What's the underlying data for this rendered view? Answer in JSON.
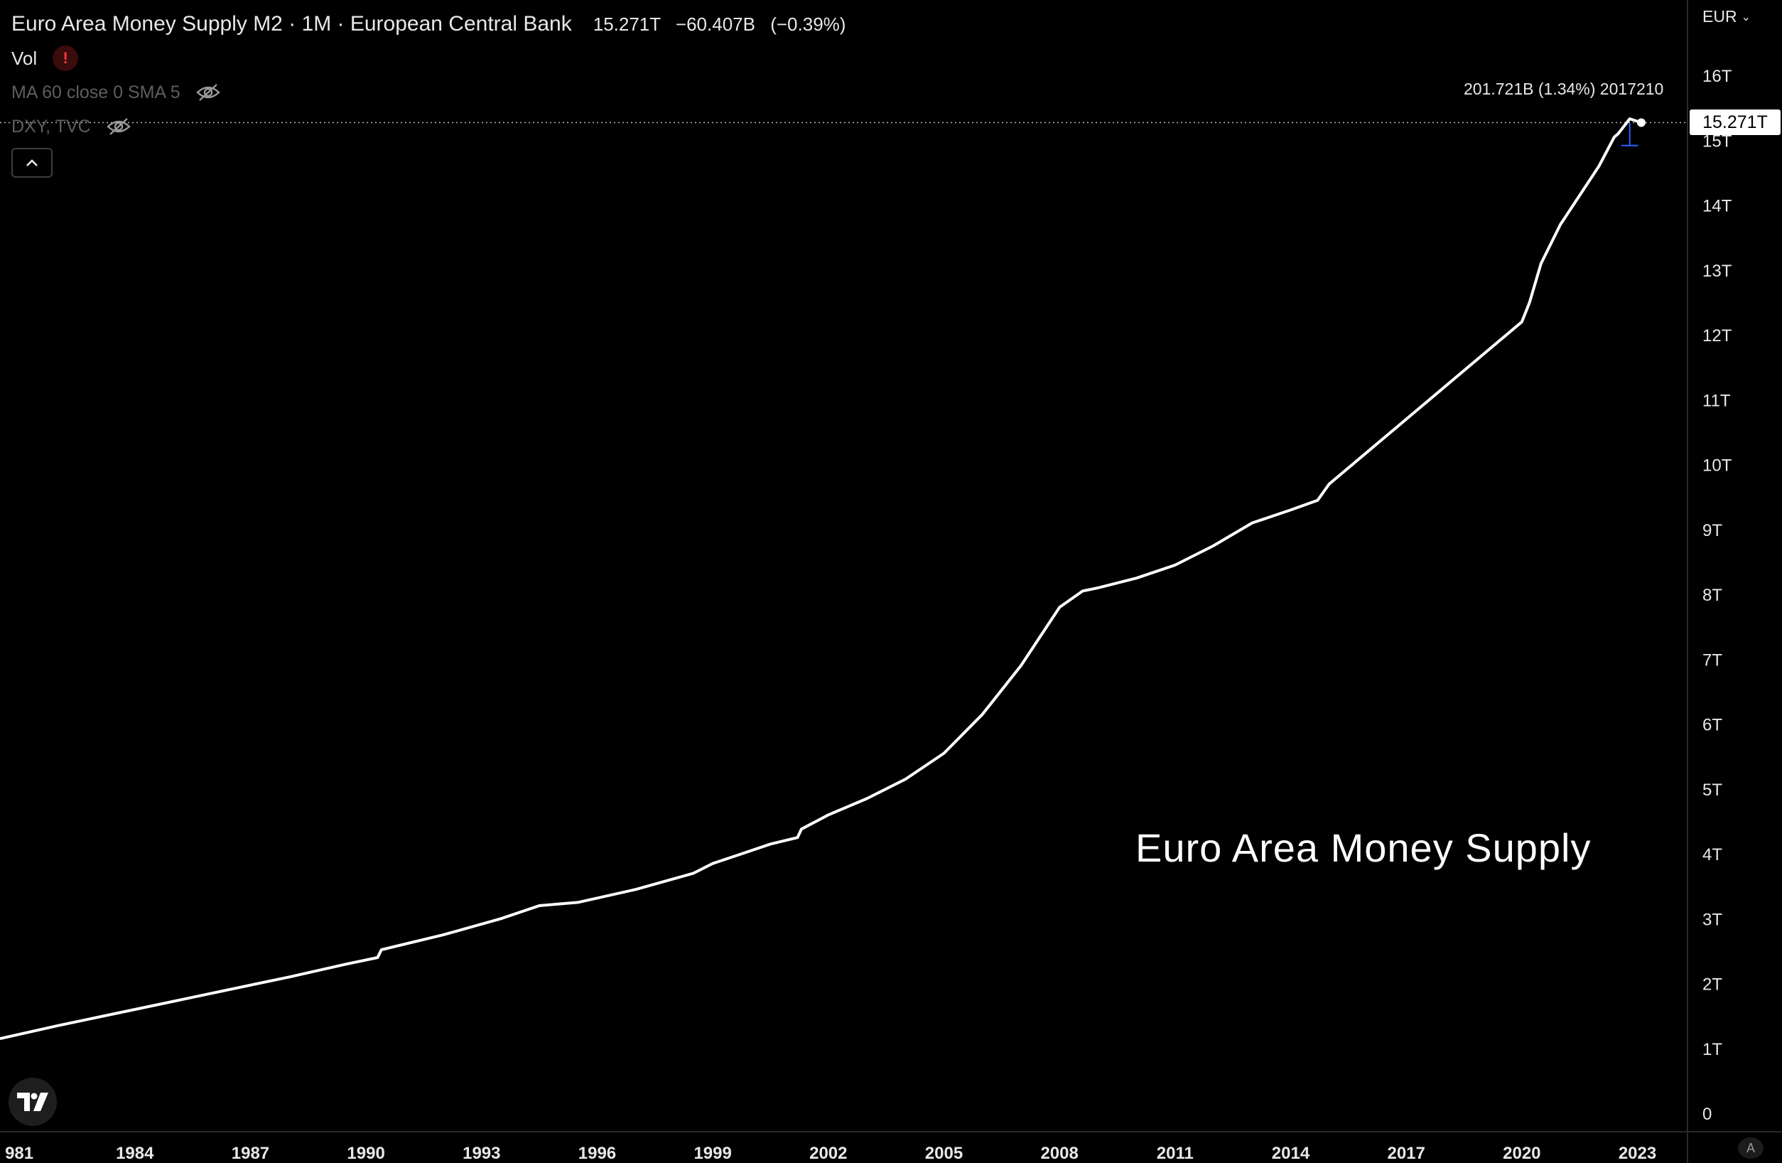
{
  "header": {
    "title": "Euro Area Money Supply M2 · 1M · European Central Bank",
    "last_value": "15.271T",
    "change": "−60.407B",
    "change_pct": "(−0.39%)"
  },
  "indicators": {
    "vol_label": "Vol",
    "vol_warning": "!",
    "ma_label": "MA 60 close 0 SMA 5",
    "compare_label": "DXY, TVC"
  },
  "currency": {
    "label": "EUR"
  },
  "price_tag": "15.271T",
  "annotation": "201.721B (1.34%) 2017210",
  "watermark": "Euro Area Money Supply",
  "auto_scale_label": "A",
  "colors": {
    "line": "#ffffff",
    "background": "#000000",
    "axis_text": "#e8e8e8",
    "warn": "#ff3b3b",
    "measure": "#2962ff"
  },
  "chart_data": {
    "type": "line",
    "title": "Euro Area Money Supply M2 · 1M · European Central Bank",
    "xlabel": "",
    "ylabel": "",
    "unit": "EUR",
    "x_tick_labels": [
      "981",
      "1984",
      "1987",
      "1990",
      "1993",
      "1996",
      "1999",
      "2002",
      "2005",
      "2008",
      "2011",
      "2014",
      "2017",
      "2020",
      "2023"
    ],
    "y_tick_labels": [
      "16T",
      "15T",
      "14T",
      "13T",
      "12T",
      "11T",
      "10T",
      "9T",
      "8T",
      "7T",
      "6T",
      "5T",
      "4T",
      "3T",
      "2T",
      "1T",
      "0"
    ],
    "xlim": [
      1980.5,
      2024.3
    ],
    "ylim": [
      0,
      16
    ],
    "grid": false,
    "series": [
      {
        "x": [
          1980.5,
          1982,
          1984,
          1986,
          1988,
          1989.5,
          1990.3,
          1990.4,
          1992,
          1993.5,
          1994.5,
          1995.5,
          1997,
          1998.5,
          1999,
          1999.5,
          2000.5,
          2001.2,
          2001.3,
          2002,
          2003,
          2004,
          2005,
          2006,
          2007,
          2008,
          2008.6,
          2009,
          2010,
          2011,
          2012,
          2013,
          2014,
          2014.7,
          2015,
          2016,
          2017,
          2018,
          2019,
          2020,
          2020.1,
          2020.2,
          2020.5,
          2021,
          2022,
          2022.4,
          2022.5,
          2022.8,
          2023.1
        ],
        "y": [
          1.15,
          1.35,
          1.6,
          1.85,
          2.1,
          2.3,
          2.4,
          2.52,
          2.75,
          3.0,
          3.2,
          3.25,
          3.45,
          3.7,
          3.85,
          3.95,
          4.15,
          4.25,
          4.38,
          4.6,
          4.85,
          5.15,
          5.55,
          6.15,
          6.9,
          7.8,
          8.05,
          8.1,
          8.25,
          8.45,
          8.75,
          9.1,
          9.3,
          9.45,
          9.7,
          10.2,
          10.7,
          11.2,
          11.7,
          12.2,
          12.35,
          12.5,
          13.1,
          13.7,
          14.6,
          15.05,
          15.1,
          15.33,
          15.271
        ]
      }
    ],
    "last_value": 15.271,
    "last_value_label": "15.271T"
  }
}
